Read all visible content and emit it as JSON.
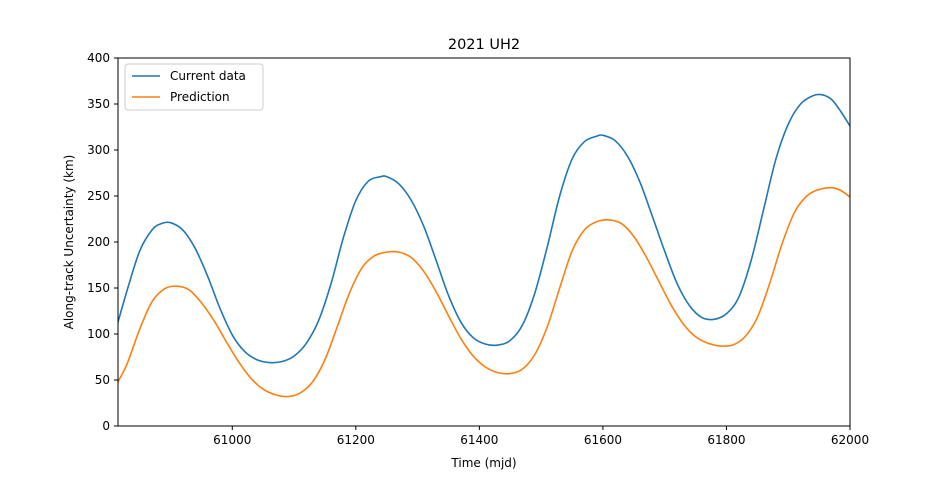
{
  "chart_data": {
    "type": "line",
    "title": "2021 UH2",
    "xlabel": "Time (mjd)",
    "ylabel": "Along-track Uncertainty (km)",
    "xlim": [
      60815,
      62000
    ],
    "ylim": [
      0,
      400
    ],
    "xticks": [
      61000,
      61200,
      61400,
      61600,
      61800,
      62000
    ],
    "yticks": [
      0,
      50,
      100,
      150,
      200,
      250,
      300,
      350,
      400
    ],
    "grid": false,
    "legend_position": "upper-left",
    "series": [
      {
        "name": "Current data",
        "color": "#1f77b4",
        "points": [
          [
            60815,
            113
          ],
          [
            60830,
            148
          ],
          [
            60850,
            190
          ],
          [
            60870,
            213
          ],
          [
            60885,
            220
          ],
          [
            60900,
            221
          ],
          [
            60920,
            213
          ],
          [
            60940,
            193
          ],
          [
            60960,
            163
          ],
          [
            60980,
            128
          ],
          [
            61000,
            99
          ],
          [
            61020,
            81
          ],
          [
            61040,
            72
          ],
          [
            61060,
            69
          ],
          [
            61080,
            70
          ],
          [
            61100,
            76
          ],
          [
            61120,
            90
          ],
          [
            61140,
            115
          ],
          [
            61160,
            155
          ],
          [
            61180,
            205
          ],
          [
            61200,
            245
          ],
          [
            61220,
            266
          ],
          [
            61240,
            271
          ],
          [
            61250,
            271
          ],
          [
            61270,
            263
          ],
          [
            61290,
            245
          ],
          [
            61310,
            217
          ],
          [
            61330,
            180
          ],
          [
            61350,
            142
          ],
          [
            61370,
            113
          ],
          [
            61390,
            96
          ],
          [
            61410,
            89
          ],
          [
            61430,
            88
          ],
          [
            61450,
            93
          ],
          [
            61470,
            110
          ],
          [
            61490,
            145
          ],
          [
            61510,
            195
          ],
          [
            61530,
            250
          ],
          [
            61550,
            290
          ],
          [
            61570,
            309
          ],
          [
            61590,
            315
          ],
          [
            61600,
            316
          ],
          [
            61620,
            310
          ],
          [
            61640,
            293
          ],
          [
            61660,
            265
          ],
          [
            61680,
            228
          ],
          [
            61700,
            190
          ],
          [
            61720,
            155
          ],
          [
            61740,
            131
          ],
          [
            61760,
            118
          ],
          [
            61780,
            116
          ],
          [
            61800,
            122
          ],
          [
            61820,
            140
          ],
          [
            61840,
            180
          ],
          [
            61860,
            235
          ],
          [
            61880,
            290
          ],
          [
            61900,
            328
          ],
          [
            61920,
            350
          ],
          [
            61940,
            359
          ],
          [
            61955,
            360
          ],
          [
            61970,
            355
          ],
          [
            61985,
            342
          ],
          [
            62000,
            326
          ]
        ]
      },
      {
        "name": "Prediction",
        "color": "#ff7f0e",
        "points": [
          [
            60815,
            48
          ],
          [
            60830,
            68
          ],
          [
            60850,
            105
          ],
          [
            60870,
            135
          ],
          [
            60890,
            149
          ],
          [
            60910,
            152
          ],
          [
            60930,
            148
          ],
          [
            60950,
            134
          ],
          [
            60970,
            115
          ],
          [
            60990,
            92
          ],
          [
            61010,
            70
          ],
          [
            61030,
            52
          ],
          [
            61050,
            40
          ],
          [
            61070,
            34
          ],
          [
            61090,
            32
          ],
          [
            61110,
            36
          ],
          [
            61130,
            48
          ],
          [
            61150,
            72
          ],
          [
            61170,
            108
          ],
          [
            61190,
            145
          ],
          [
            61210,
            172
          ],
          [
            61230,
            185
          ],
          [
            61250,
            189
          ],
          [
            61270,
            189
          ],
          [
            61290,
            183
          ],
          [
            61310,
            168
          ],
          [
            61330,
            146
          ],
          [
            61350,
            120
          ],
          [
            61370,
            95
          ],
          [
            61390,
            76
          ],
          [
            61410,
            64
          ],
          [
            61430,
            58
          ],
          [
            61450,
            57
          ],
          [
            61470,
            62
          ],
          [
            61490,
            78
          ],
          [
            61510,
            108
          ],
          [
            61530,
            150
          ],
          [
            61550,
            190
          ],
          [
            61570,
            213
          ],
          [
            61590,
            222
          ],
          [
            61610,
            224
          ],
          [
            61630,
            220
          ],
          [
            61650,
            206
          ],
          [
            61670,
            184
          ],
          [
            61690,
            158
          ],
          [
            61710,
            132
          ],
          [
            61730,
            111
          ],
          [
            61750,
            97
          ],
          [
            61770,
            90
          ],
          [
            61790,
            87
          ],
          [
            61810,
            88
          ],
          [
            61830,
            97
          ],
          [
            61850,
            118
          ],
          [
            61870,
            155
          ],
          [
            61890,
            198
          ],
          [
            61910,
            232
          ],
          [
            61930,
            250
          ],
          [
            61950,
            257
          ],
          [
            61970,
            259
          ],
          [
            61985,
            256
          ],
          [
            62000,
            249
          ]
        ]
      }
    ]
  }
}
